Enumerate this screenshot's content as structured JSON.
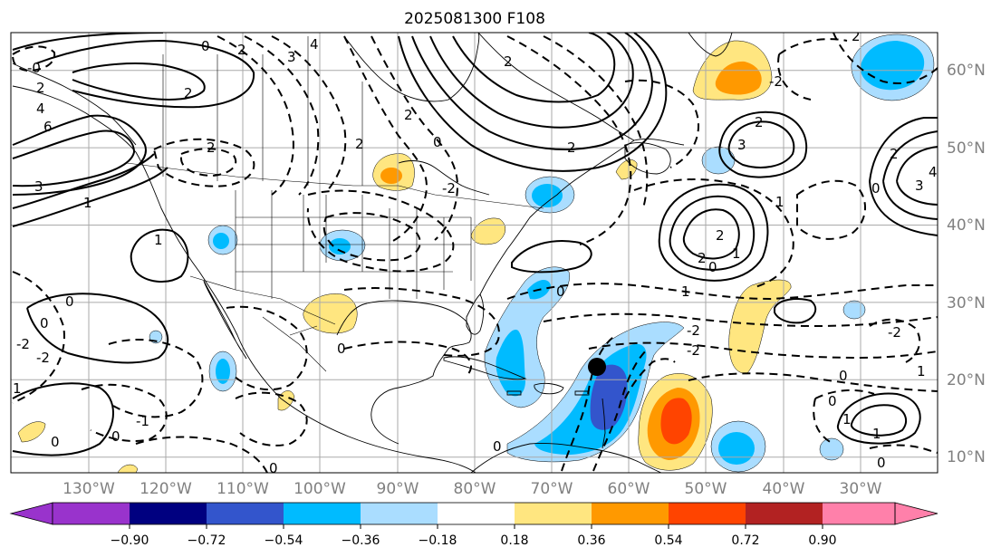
{
  "title": "2025081300 F108",
  "lat_labels": [
    "60°N",
    "50°N",
    "40°N",
    "30°N",
    "20°N",
    "10°N"
  ],
  "lon_labels": [
    "130°W",
    "120°W",
    "110°W",
    "100°W",
    "90°W",
    "80°W",
    "70°W",
    "60°W",
    "50°W",
    "40°W",
    "30°W"
  ],
  "colorbar": {
    "colors": [
      "#9933cc",
      "#000080",
      "#3355cc",
      "#00bbff",
      "#aaddff",
      "#ffffff",
      "#ffe680",
      "#ff9900",
      "#ff4400",
      "#b22222",
      "#ff80aa"
    ],
    "tick_labels": [
      "−0.90",
      "−0.72",
      "−0.54",
      "−0.36",
      "−0.18",
      "0.18",
      "0.36",
      "0.54",
      "0.72",
      "0.90"
    ]
  },
  "contour_labels": [
    "-0",
    "2",
    "4",
    "6",
    "3",
    "1",
    "4",
    "3",
    "2",
    "2",
    "1",
    "0",
    "2",
    "2",
    "2",
    "-2",
    "0",
    "2",
    "2",
    "3",
    "-2",
    "2",
    "1",
    "0",
    "4",
    "3",
    "2",
    "2",
    "2",
    "2",
    "1",
    "0",
    "-2",
    "1",
    "0",
    "0",
    "1",
    "-2",
    "0",
    "-2",
    "0",
    "-1",
    "-2",
    "0",
    "0",
    "-2",
    "0",
    "0",
    "0",
    "1",
    "1",
    "0",
    "0",
    "1"
  ],
  "colors": {
    "land_outline": "#000000",
    "grid": "#aaaaaa",
    "contour": "#000000",
    "track_dot": "#000000"
  }
}
